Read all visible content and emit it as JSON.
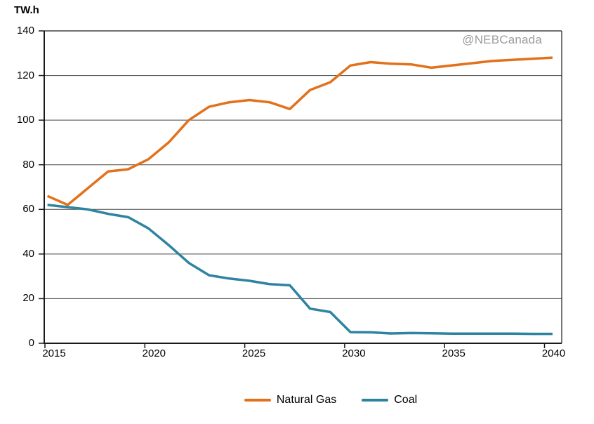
{
  "axis_unit_label": "TW.h",
  "watermark": "@NEBCanada",
  "colors": {
    "background": "#ffffff",
    "axis": "#1a1a1a",
    "grid": "#454545",
    "tick_text": "#000000",
    "watermark_text": "#9C9C9C"
  },
  "chart_data": {
    "type": "line",
    "title": "",
    "xlabel": "",
    "ylabel": "TW.h",
    "ylim": [
      0,
      140
    ],
    "xlim": [
      2015,
      2040
    ],
    "grid": "horizontal lines every 20",
    "legend_position": "bottom-center",
    "yticks": [
      "0",
      "20",
      "40",
      "60",
      "80",
      "100",
      "120",
      "140"
    ],
    "ytick_values": [
      0,
      20,
      40,
      60,
      80,
      100,
      120,
      140
    ],
    "xticks": [
      "2015",
      "2020",
      "2025",
      "2030",
      "2035",
      "2040"
    ],
    "xtick_values": [
      2015,
      2020,
      2025,
      2030,
      2035,
      2040
    ],
    "x": [
      2015,
      2016,
      2017,
      2018,
      2019,
      2020,
      2021,
      2022,
      2023,
      2024,
      2025,
      2026,
      2027,
      2028,
      2029,
      2030,
      2031,
      2032,
      2033,
      2034,
      2035,
      2036,
      2037,
      2038,
      2039,
      2040
    ],
    "series": [
      {
        "name": "Natural Gas",
        "color": "#E2711C",
        "values": [
          66,
          62,
          69.5,
          77,
          78,
          82.5,
          90,
          100,
          106,
          108,
          109,
          108,
          105,
          113.5,
          117,
          124.5,
          126,
          125.3,
          125,
          123.5,
          124.5,
          125.5,
          126.5,
          127,
          127.5,
          128
        ]
      },
      {
        "name": "Coal",
        "color": "#2E84A0",
        "values": [
          62,
          61,
          60,
          58,
          56.5,
          51.5,
          44,
          36,
          30.5,
          29,
          28,
          26.5,
          26,
          15.5,
          14,
          5,
          4.9,
          4.4,
          4.6,
          4.5,
          4.3,
          4.3,
          4.3,
          4.3,
          4.2,
          4.2
        ]
      }
    ]
  }
}
